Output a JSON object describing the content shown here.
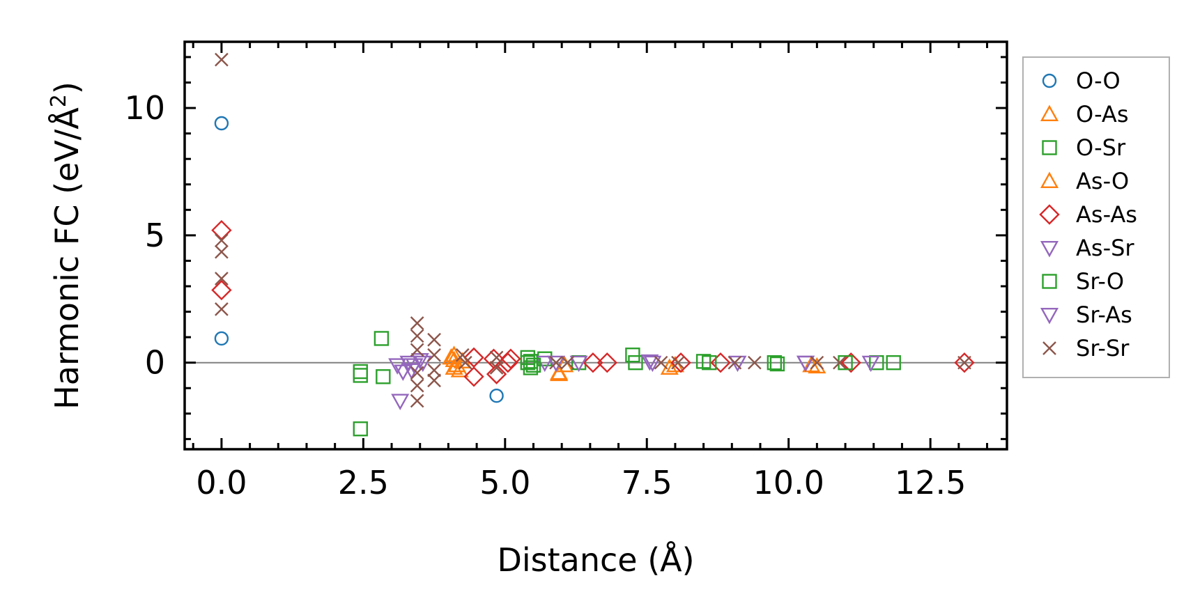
{
  "chart_data": {
    "type": "scatter",
    "title": "",
    "xlabel": "Distance (Å)",
    "ylabel_prefix": "Harmonic FC (eV/Å",
    "ylabel_sup": "2",
    "ylabel_suffix": ")",
    "xlim": [
      -0.65,
      13.85
    ],
    "ylim": [
      -3.4,
      12.6
    ],
    "x_ticks": [
      0.0,
      2.5,
      5.0,
      7.5,
      10.0,
      12.5
    ],
    "x_tick_labels": [
      "0.0",
      "2.5",
      "5.0",
      "7.5",
      "10.0",
      "12.5"
    ],
    "y_ticks": [
      0,
      5,
      10
    ],
    "y_tick_labels": [
      "0",
      "5",
      "10"
    ],
    "grid": false,
    "zero_line": true,
    "legend_position": "outside-right",
    "series": [
      {
        "name": "O-O",
        "marker": "circle",
        "color": "#1f77b4",
        "points": [
          [
            0.0,
            9.4
          ],
          [
            0.0,
            0.95
          ],
          [
            4.85,
            -1.3
          ]
        ]
      },
      {
        "name": "O-As",
        "marker": "triangle-up",
        "color": "#ff7f0e",
        "points": [
          [
            4.1,
            0.3
          ],
          [
            4.1,
            0.1
          ],
          [
            4.15,
            -0.1
          ],
          [
            4.2,
            -0.3
          ],
          [
            4.25,
            0.05
          ],
          [
            5.95,
            -0.4
          ],
          [
            6.05,
            -0.1
          ],
          [
            7.9,
            -0.2
          ],
          [
            10.5,
            -0.15
          ]
        ]
      },
      {
        "name": "O-Sr",
        "marker": "square",
        "color": "#2ca02c",
        "points": [
          [
            2.45,
            -2.6
          ],
          [
            2.45,
            -0.35
          ],
          [
            2.45,
            -0.5
          ],
          [
            2.82,
            0.95
          ],
          [
            2.85,
            -0.55
          ],
          [
            5.4,
            0.2
          ],
          [
            5.4,
            0.0
          ],
          [
            5.45,
            -0.2
          ],
          [
            5.7,
            0.15
          ],
          [
            6.3,
            0.0
          ],
          [
            7.25,
            0.3
          ],
          [
            7.3,
            0.0
          ],
          [
            8.5,
            0.05
          ],
          [
            9.75,
            0.0
          ],
          [
            11.55,
            0.0
          ],
          [
            11.85,
            0.0
          ]
        ]
      },
      {
        "name": "As-O",
        "marker": "triangle-up",
        "color": "#ff7f0e",
        "points": [
          [
            4.05,
            0.2
          ],
          [
            4.1,
            -0.2
          ],
          [
            5.95,
            -0.45
          ],
          [
            8.0,
            -0.1
          ],
          [
            10.4,
            -0.1
          ]
        ]
      },
      {
        "name": "As-As",
        "marker": "diamond",
        "color": "#d62728",
        "points": [
          [
            0.0,
            5.2
          ],
          [
            0.0,
            2.85
          ],
          [
            4.45,
            0.2
          ],
          [
            4.45,
            -0.55
          ],
          [
            4.8,
            0.15
          ],
          [
            4.85,
            -0.45
          ],
          [
            5.05,
            0.0
          ],
          [
            5.1,
            0.15
          ],
          [
            6.55,
            0.0
          ],
          [
            6.8,
            0.0
          ],
          [
            8.1,
            0.0
          ],
          [
            8.8,
            0.0
          ],
          [
            11.1,
            0.0
          ],
          [
            13.1,
            0.0
          ]
        ]
      },
      {
        "name": "As-Sr",
        "marker": "triangle-down",
        "color": "#9467bd",
        "points": [
          [
            3.1,
            -0.1
          ],
          [
            3.15,
            -1.5
          ],
          [
            3.3,
            0.0
          ],
          [
            3.35,
            -0.3
          ],
          [
            3.5,
            0.1
          ],
          [
            3.55,
            0.0
          ],
          [
            5.7,
            0.0
          ],
          [
            6.3,
            0.0
          ],
          [
            7.6,
            0.0
          ],
          [
            9.1,
            0.0
          ],
          [
            10.3,
            0.0
          ],
          [
            11.45,
            0.0
          ]
        ]
      },
      {
        "name": "Sr-O",
        "marker": "square",
        "color": "#2ca02c",
        "points": [
          [
            5.45,
            0.05
          ],
          [
            5.5,
            -0.1
          ],
          [
            8.6,
            0.0
          ],
          [
            9.8,
            -0.05
          ],
          [
            11.0,
            0.0
          ]
        ]
      },
      {
        "name": "Sr-As",
        "marker": "triangle-down",
        "color": "#9467bd",
        "points": [
          [
            3.2,
            -0.35
          ],
          [
            3.4,
            -0.1
          ],
          [
            5.9,
            0.0
          ],
          [
            7.55,
            0.05
          ],
          [
            10.3,
            0.0
          ]
        ]
      },
      {
        "name": "Sr-Sr",
        "marker": "x",
        "color": "#8c564b",
        "points": [
          [
            0.0,
            11.9
          ],
          [
            0.0,
            4.8
          ],
          [
            0.0,
            4.35
          ],
          [
            0.0,
            3.3
          ],
          [
            0.0,
            2.1
          ],
          [
            3.45,
            1.55
          ],
          [
            3.45,
            1.05
          ],
          [
            3.45,
            0.5
          ],
          [
            3.45,
            -0.4
          ],
          [
            3.45,
            -0.9
          ],
          [
            3.45,
            -1.5
          ],
          [
            3.75,
            0.9
          ],
          [
            3.75,
            0.3
          ],
          [
            3.75,
            -0.3
          ],
          [
            3.75,
            -0.7
          ],
          [
            4.25,
            0.3
          ],
          [
            4.3,
            0.0
          ],
          [
            4.85,
            0.2
          ],
          [
            4.85,
            -0.2
          ],
          [
            5.9,
            0.0
          ],
          [
            6.1,
            0.0
          ],
          [
            7.75,
            0.0
          ],
          [
            8.05,
            0.0
          ],
          [
            9.05,
            0.0
          ],
          [
            9.4,
            0.0
          ],
          [
            10.5,
            0.0
          ],
          [
            10.9,
            0.0
          ],
          [
            13.1,
            0.0
          ]
        ]
      }
    ]
  }
}
